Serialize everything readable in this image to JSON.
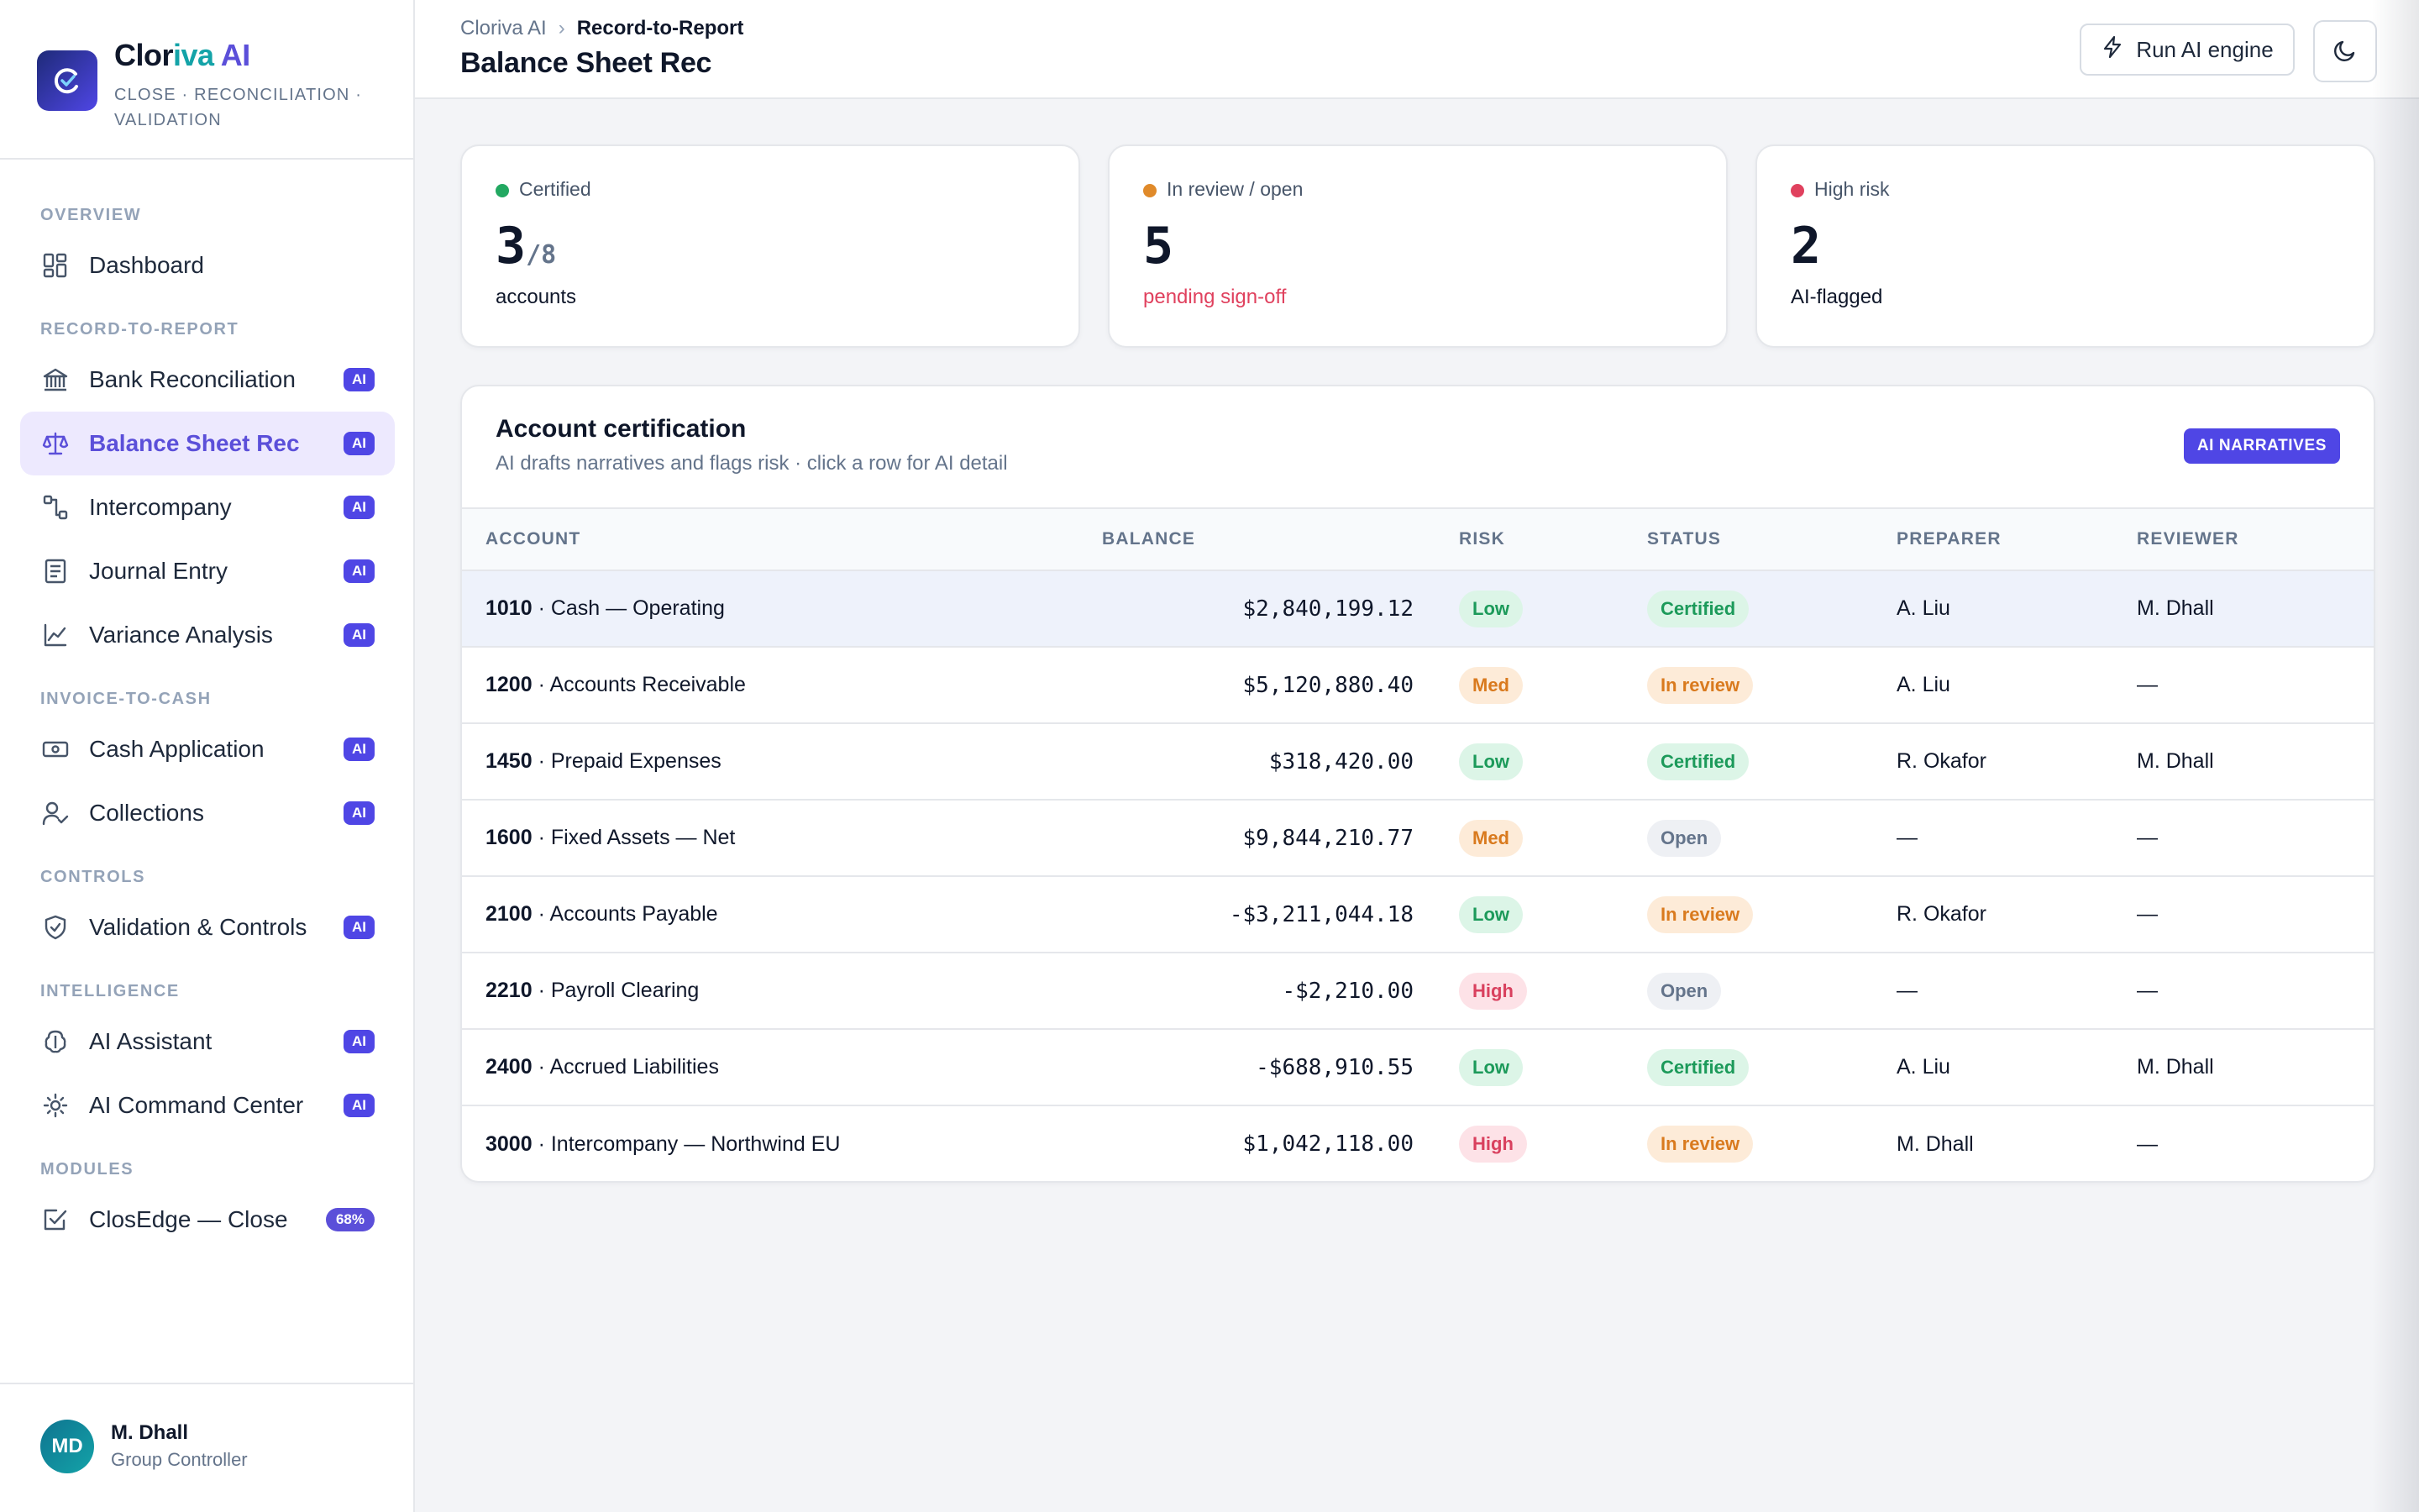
{
  "brand": {
    "name_part1": "Clor",
    "name_part2": "iva",
    "name_part3": " AI",
    "tagline": "CLOSE · RECONCILIATION · VALIDATION"
  },
  "sidebar": {
    "sections": {
      "overview": "OVERVIEW",
      "r2r": "RECORD-TO-REPORT",
      "i2c": "INVOICE-TO-CASH",
      "controls": "CONTROLS",
      "intelligence": "INTELLIGENCE",
      "modules": "MODULES"
    },
    "items": {
      "dashboard": {
        "label": "Dashboard"
      },
      "bank_rec": {
        "label": "Bank Reconciliation",
        "badge": "AI"
      },
      "bs_rec": {
        "label": "Balance Sheet Rec",
        "badge": "AI"
      },
      "intercompany": {
        "label": "Intercompany",
        "badge": "AI"
      },
      "journal": {
        "label": "Journal Entry",
        "badge": "AI"
      },
      "variance": {
        "label": "Variance Analysis",
        "badge": "AI"
      },
      "cash_app": {
        "label": "Cash Application",
        "badge": "AI"
      },
      "collections": {
        "label": "Collections",
        "badge": "AI"
      },
      "validation": {
        "label": "Validation & Controls",
        "badge": "AI"
      },
      "assistant": {
        "label": "AI Assistant",
        "badge": "AI"
      },
      "command": {
        "label": "AI Command Center",
        "badge": "AI"
      },
      "closedge": {
        "label": "ClosEdge — Close",
        "badge": "68%"
      }
    }
  },
  "user": {
    "initials": "MD",
    "name": "M. Dhall",
    "role": "Group Controller"
  },
  "header": {
    "breadcrumb_root": "Cloriva AI",
    "breadcrumb_sep": "›",
    "breadcrumb_current": "Record-to-Report",
    "title": "Balance Sheet Rec",
    "run_button": "Run AI engine"
  },
  "stats": [
    {
      "label": "Certified",
      "value": "3",
      "of": "/8",
      "sub": "accounts",
      "dot": "#22a861"
    },
    {
      "label": "In review / open",
      "value": "5",
      "of": "",
      "sub": "pending sign-off",
      "dot": "#e08a2a"
    },
    {
      "label": "High risk",
      "value": "2",
      "of": "",
      "sub": "AI-flagged",
      "dot": "#e0415e"
    }
  ],
  "certification": {
    "title": "Account certification",
    "subtitle": "AI drafts narratives and flags risk · click a row for AI detail",
    "badge": "AI NARRATIVES",
    "columns": {
      "account": "ACCOUNT",
      "balance": "BALANCE",
      "risk": "RISK",
      "status": "STATUS",
      "preparer": "PREPARER",
      "reviewer": "REVIEWER"
    },
    "rows": [
      {
        "code": "1010",
        "name": " · Cash — Operating",
        "balance": "$2,840,199.12",
        "risk": "Low",
        "status": "Certified",
        "preparer": "A. Liu",
        "reviewer": "M. Dhall"
      },
      {
        "code": "1200",
        "name": " · Accounts Receivable",
        "balance": "$5,120,880.40",
        "risk": "Med",
        "status": "In review",
        "preparer": "A. Liu",
        "reviewer": "—"
      },
      {
        "code": "1450",
        "name": " · Prepaid Expenses",
        "balance": "$318,420.00",
        "risk": "Low",
        "status": "Certified",
        "preparer": "R. Okafor",
        "reviewer": "M. Dhall"
      },
      {
        "code": "1600",
        "name": " · Fixed Assets — Net",
        "balance": "$9,844,210.77",
        "risk": "Med",
        "status": "Open",
        "preparer": "—",
        "reviewer": "—"
      },
      {
        "code": "2100",
        "name": " · Accounts Payable",
        "balance": "-$3,211,044.18",
        "risk": "Low",
        "status": "In review",
        "preparer": "R. Okafor",
        "reviewer": "—"
      },
      {
        "code": "2210",
        "name": " · Payroll Clearing",
        "balance": "-$2,210.00",
        "risk": "High",
        "status": "Open",
        "preparer": "—",
        "reviewer": "—"
      },
      {
        "code": "2400",
        "name": " · Accrued Liabilities",
        "balance": "-$688,910.55",
        "risk": "Low",
        "status": "Certified",
        "preparer": "A. Liu",
        "reviewer": "M. Dhall"
      },
      {
        "code": "3000",
        "name": " · Intercompany — Northwind EU",
        "balance": "$1,042,118.00",
        "risk": "High",
        "status": "In review",
        "preparer": "M. Dhall",
        "reviewer": "—"
      }
    ]
  },
  "colors": {
    "accent": "#4f46e5",
    "brand_teal": "#14a3a8",
    "active_bg": "#ede9fe"
  }
}
